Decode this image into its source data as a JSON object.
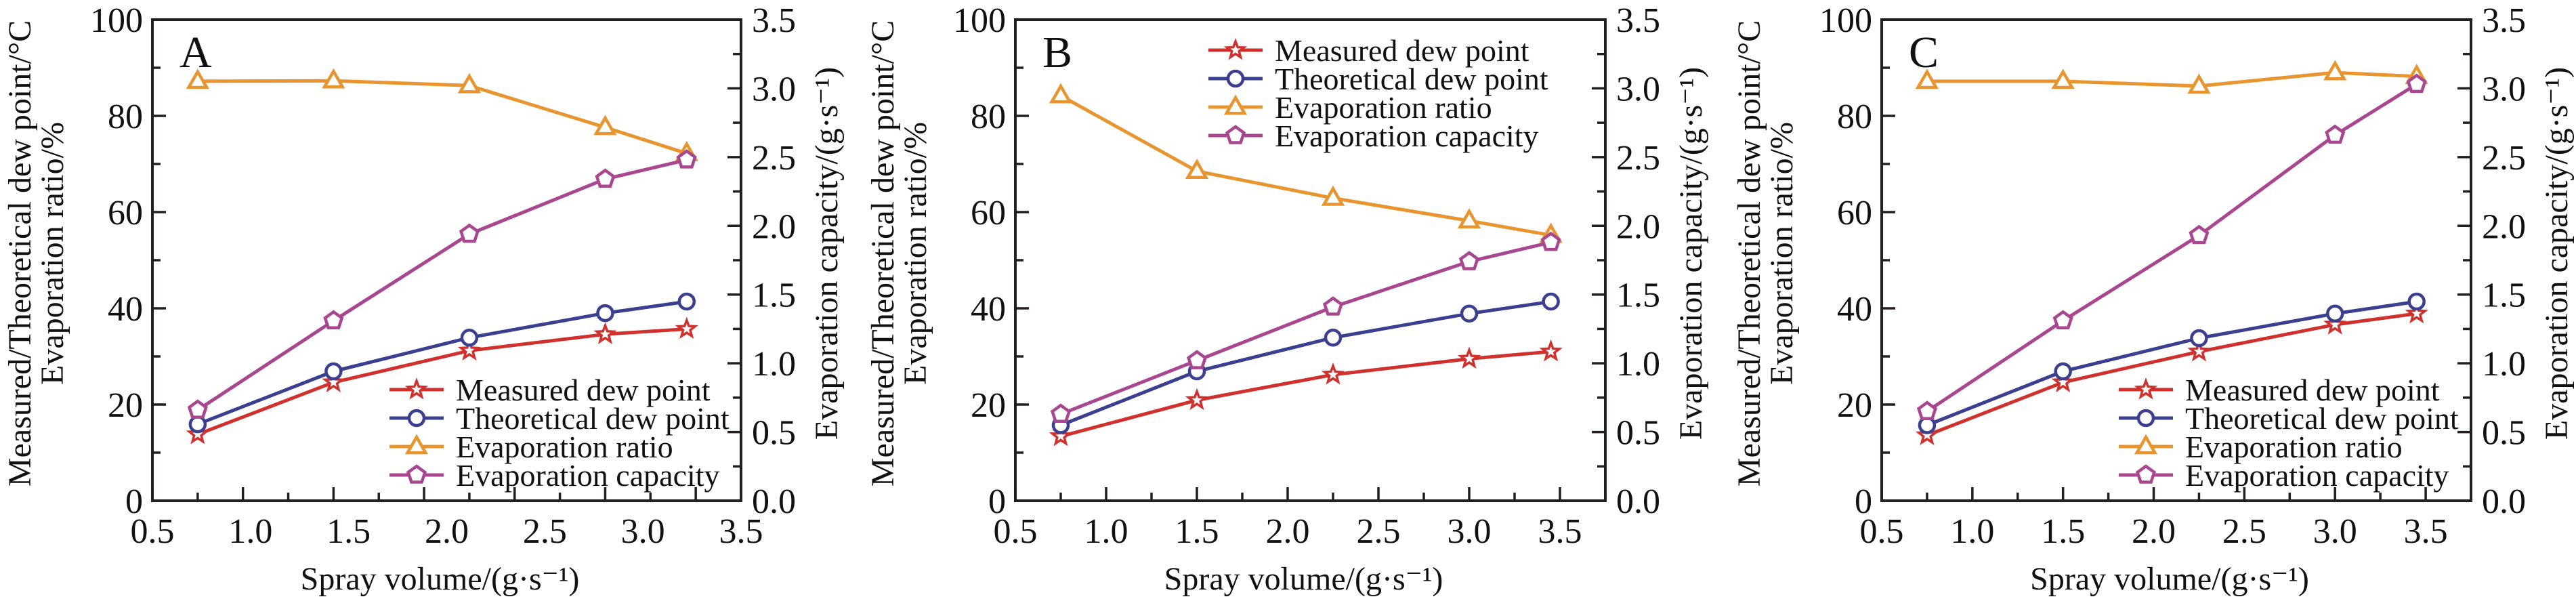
{
  "figure": {
    "panel_count": 3
  },
  "chart_data": [
    {
      "type": "line",
      "panel_label": "A",
      "xlabel": "Spray volume/(g·s⁻¹)",
      "ylabel_lines": [
        "Measured/Theoretical dew point/°C",
        "Evaporation ratio/%"
      ],
      "y2label": "Evaporation capacity/(g·s⁻¹)",
      "xlim": [
        0.5,
        3.75
      ],
      "ylim": [
        0,
        100
      ],
      "y2lim": [
        0,
        3.5
      ],
      "x_tick_labels": [
        "0.5",
        "1.0",
        "1.5",
        "2.0",
        "2.5",
        "3.0",
        "3.5"
      ],
      "x_tick_labels_evenly_spread": true,
      "y_tick_labels": [
        "0",
        "20",
        "40",
        "60",
        "80",
        "100"
      ],
      "y2_tick_labels": [
        "0.0",
        "0.5",
        "1.0",
        "1.5",
        "2.0",
        "2.5",
        "3.0",
        "3.5"
      ],
      "legend_position": "bottom-right",
      "x": [
        0.75,
        1.5,
        2.25,
        3.0,
        3.45
      ],
      "series": [
        {
          "name": "Measured dew point",
          "axis": "left",
          "marker": "star",
          "color": "#d0312d",
          "values": [
            13.8,
            24.6,
            31.2,
            34.6,
            35.7
          ]
        },
        {
          "name": "Theoretical dew point",
          "axis": "left",
          "marker": "circle",
          "color": "#3b3f8f",
          "values": [
            15.9,
            26.9,
            33.9,
            39.0,
            41.4
          ]
        },
        {
          "name": "Evaporation ratio",
          "axis": "left",
          "marker": "triangle",
          "color": "#e8952f",
          "values": [
            87.2,
            87.3,
            86.3,
            77.6,
            72.2
          ]
        },
        {
          "name": "Evaporation capacity",
          "axis": "right",
          "marker": "pentagon",
          "color": "#a8468f",
          "values": [
            0.66,
            1.31,
            1.94,
            2.34,
            2.48
          ]
        }
      ]
    },
    {
      "type": "line",
      "panel_label": "B",
      "xlabel": "Spray volume/(g·s⁻¹)",
      "ylabel_lines": [
        "Measured/Theoretical dew point/°C",
        "Evaporation ratio/%"
      ],
      "y2label": "Evaporation capacity/(g·s⁻¹)",
      "xlim": [
        0.5,
        3.75
      ],
      "ylim": [
        0,
        100
      ],
      "y2lim": [
        0,
        3.5
      ],
      "x_tick_labels": [
        "0.5",
        "1.0",
        "1.5",
        "2.0",
        "2.5",
        "3.0",
        "3.5"
      ],
      "x_tick_labels_evenly_spread": false,
      "y_tick_labels": [
        "0",
        "20",
        "40",
        "60",
        "80",
        "100"
      ],
      "y2_tick_labels": [
        "0.0",
        "0.5",
        "1.0",
        "1.5",
        "2.0",
        "2.5",
        "3.0",
        "3.5"
      ],
      "legend_position": "top-right",
      "x": [
        0.75,
        1.5,
        2.25,
        3.0,
        3.45
      ],
      "series": [
        {
          "name": "Measured dew point",
          "axis": "left",
          "marker": "star",
          "color": "#d0312d",
          "values": [
            13.4,
            20.9,
            26.2,
            29.5,
            31.0
          ]
        },
        {
          "name": "Theoretical dew point",
          "axis": "left",
          "marker": "circle",
          "color": "#3b3f8f",
          "values": [
            15.7,
            26.9,
            33.9,
            38.9,
            41.4
          ]
        },
        {
          "name": "Evaporation ratio",
          "axis": "left",
          "marker": "triangle",
          "color": "#e8952f",
          "values": [
            84.2,
            68.5,
            62.9,
            58.2,
            55.2
          ]
        },
        {
          "name": "Evaporation capacity",
          "axis": "right",
          "marker": "pentagon",
          "color": "#a8468f",
          "values": [
            0.63,
            1.02,
            1.41,
            1.74,
            1.88
          ]
        }
      ]
    },
    {
      "type": "line",
      "panel_label": "C",
      "xlabel": "Spray volume/(g·s⁻¹)",
      "ylabel_lines": [
        "Measured/Theoretical dew point/°C",
        "Evaporation ratio/%"
      ],
      "y2label": "Evaporation capacity/(g·s⁻¹)",
      "xlim": [
        0.5,
        3.75
      ],
      "ylim": [
        0,
        100
      ],
      "y2lim": [
        0,
        3.5
      ],
      "x_tick_labels": [
        "0.5",
        "1.0",
        "1.5",
        "2.0",
        "2.5",
        "3.0",
        "3.5"
      ],
      "x_tick_labels_evenly_spread": false,
      "y_tick_labels": [
        "0",
        "20",
        "40",
        "60",
        "80",
        "100"
      ],
      "y2_tick_labels": [
        "0.0",
        "0.5",
        "1.0",
        "1.5",
        "2.0",
        "2.5",
        "3.0",
        "3.5"
      ],
      "legend_position": "bottom-right",
      "x": [
        0.75,
        1.5,
        2.25,
        3.0,
        3.45
      ],
      "series": [
        {
          "name": "Measured dew point",
          "axis": "left",
          "marker": "star",
          "color": "#d0312d",
          "values": [
            13.6,
            24.6,
            31.0,
            36.6,
            38.9
          ]
        },
        {
          "name": "Theoretical dew point",
          "axis": "left",
          "marker": "circle",
          "color": "#3b3f8f",
          "values": [
            15.7,
            26.9,
            33.8,
            38.9,
            41.4
          ]
        },
        {
          "name": "Evaporation ratio",
          "axis": "left",
          "marker": "triangle",
          "color": "#e8952f",
          "values": [
            87.2,
            87.2,
            86.2,
            89.0,
            88.2
          ]
        },
        {
          "name": "Evaporation capacity",
          "axis": "right",
          "marker": "pentagon",
          "color": "#a8468f",
          "values": [
            0.65,
            1.31,
            1.93,
            2.66,
            3.03
          ]
        }
      ]
    }
  ]
}
